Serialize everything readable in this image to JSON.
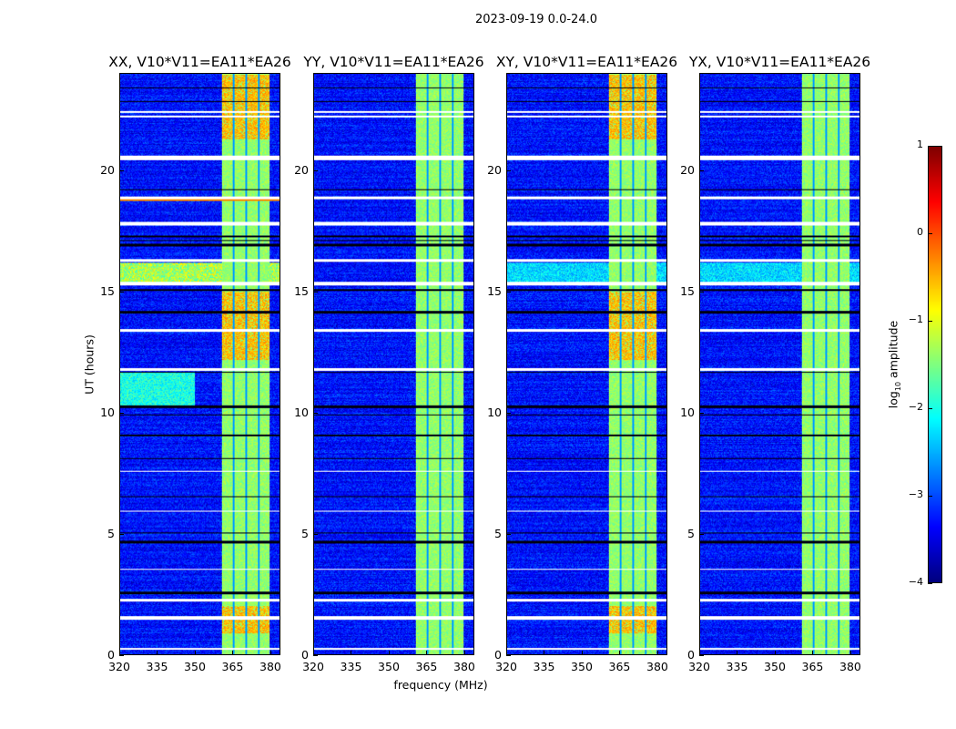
{
  "figure_title": "2023-09-19 0.0-24.0",
  "chart_data": {
    "type": "heatmap",
    "title": "2023-09-19 0.0-24.0",
    "xlabel": "frequency (MHz)",
    "ylabel": "UT (hours)",
    "xlim": [
      320,
      384
    ],
    "ylim": [
      0,
      24
    ],
    "xticks": [
      320,
      335,
      350,
      365,
      380
    ],
    "yticks": [
      0,
      5,
      10,
      15,
      20
    ],
    "colormap": "jet",
    "colorbar": {
      "label_main": "log",
      "label_sub": "10",
      "label_rest": " amplitude",
      "range": [
        -4,
        1
      ],
      "ticks": [
        1,
        0,
        -1,
        -2,
        -3,
        -4
      ],
      "tick_labels": [
        "1",
        "0",
        "−1",
        "−2",
        "−3",
        "−4"
      ]
    },
    "panels": [
      {
        "title": "XX, V10*V11=EA11*EA26",
        "pol": "XX"
      },
      {
        "title": "YY, V10*V11=EA11*EA26",
        "pol": "YY"
      },
      {
        "title": "XY, V10*V11=EA11*EA26",
        "pol": "XY"
      },
      {
        "title": "YX, V10*V11=EA11*EA26",
        "pol": "YX"
      }
    ],
    "background_level": -3.3,
    "band_mhz": [
      360.5,
      380
    ],
    "band_level": -1.4,
    "band_gaps_mhz": [
      365,
      370,
      375
    ],
    "hot_hours": [
      [
        0.9,
        2.0
      ],
      [
        12.2,
        15.0
      ],
      [
        21.3,
        24.0
      ]
    ],
    "flagged_hours": [
      [
        0.2,
        0.28
      ],
      [
        1.45,
        1.6
      ],
      [
        2.2,
        2.3
      ],
      [
        3.5,
        3.55
      ],
      [
        5.9,
        5.95
      ],
      [
        7.55,
        7.6
      ],
      [
        11.75,
        11.85
      ],
      [
        13.35,
        13.45
      ],
      [
        15.25,
        15.4
      ],
      [
        16.25,
        16.35
      ],
      [
        17.75,
        17.9
      ],
      [
        18.85,
        18.95
      ],
      [
        20.45,
        20.65
      ],
      [
        22.2,
        22.28
      ],
      [
        22.4,
        22.48
      ]
    ],
    "dark_hours": [
      [
        2.5,
        2.6
      ],
      [
        4.6,
        4.7
      ],
      [
        5.0,
        5.05
      ],
      [
        6.5,
        6.55
      ],
      [
        8.1,
        8.15
      ],
      [
        9.05,
        9.1
      ],
      [
        9.9,
        9.95
      ],
      [
        10.2,
        10.3
      ],
      [
        11.65,
        11.7
      ],
      [
        14.1,
        14.2
      ],
      [
        15.05,
        15.1
      ],
      [
        16.9,
        17.0
      ],
      [
        17.1,
        17.15
      ],
      [
        17.25,
        17.35
      ],
      [
        19.2,
        19.25
      ],
      [
        22.85,
        22.9
      ],
      [
        23.4,
        23.45
      ]
    ]
  }
}
